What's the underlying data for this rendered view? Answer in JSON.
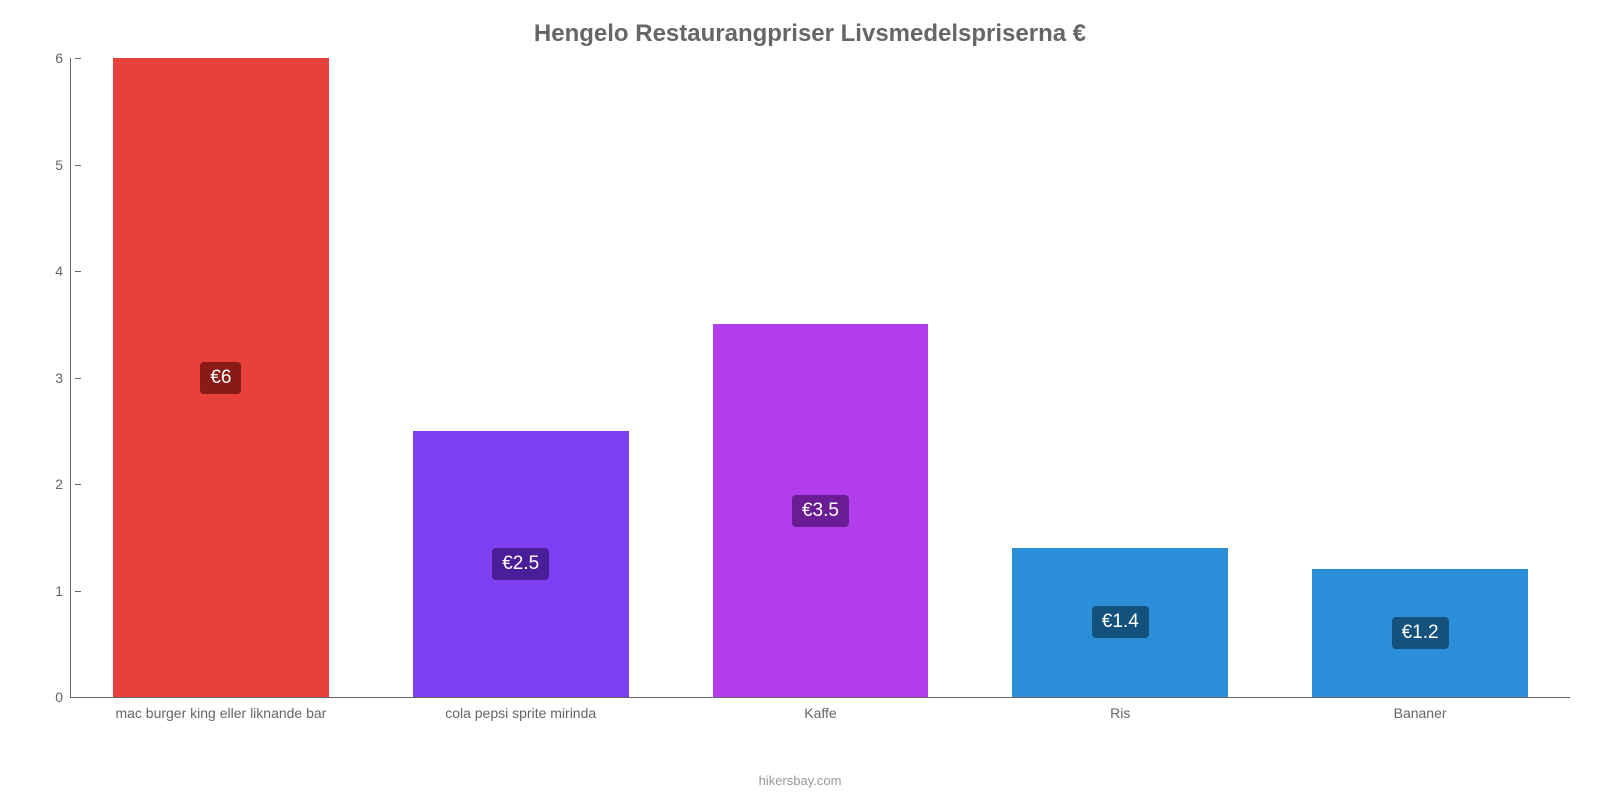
{
  "chart": {
    "type": "bar",
    "title": "Hengelo Restaurangpriser Livsmedelspriserna €",
    "title_fontsize": 24,
    "title_color": "#666666",
    "background_color": "#ffffff",
    "axis_color": "#666666",
    "tick_color": "#666666",
    "tick_fontsize": 14,
    "ylim": [
      0,
      6
    ],
    "ytick_step": 1,
    "yticks": [
      "0",
      "1",
      "2",
      "3",
      "4",
      "5",
      "6"
    ],
    "bar_width_pct": 72,
    "value_label_fontsize": 19,
    "value_label_text_color": "#ffffff",
    "categories": [
      "mac burger king eller liknande bar",
      "cola pepsi sprite mirinda",
      "Kaffe",
      "Ris",
      "Bananer"
    ],
    "values": [
      6,
      2.5,
      3.5,
      1.4,
      1.2
    ],
    "value_labels": [
      "€6",
      "€2.5",
      "€3.5",
      "€1.4",
      "€1.2"
    ],
    "bar_colors": [
      "#e8403b",
      "#7e3ff2",
      "#b13deb",
      "#2a8fd8",
      "#2a8fd8"
    ],
    "value_label_bg_colors": [
      "#8a1a17",
      "#4a1d99",
      "#6a1c93",
      "#14527d",
      "#14527d"
    ],
    "credit": "hikersbay.com",
    "credit_color": "#999999",
    "credit_fontsize": 13
  }
}
